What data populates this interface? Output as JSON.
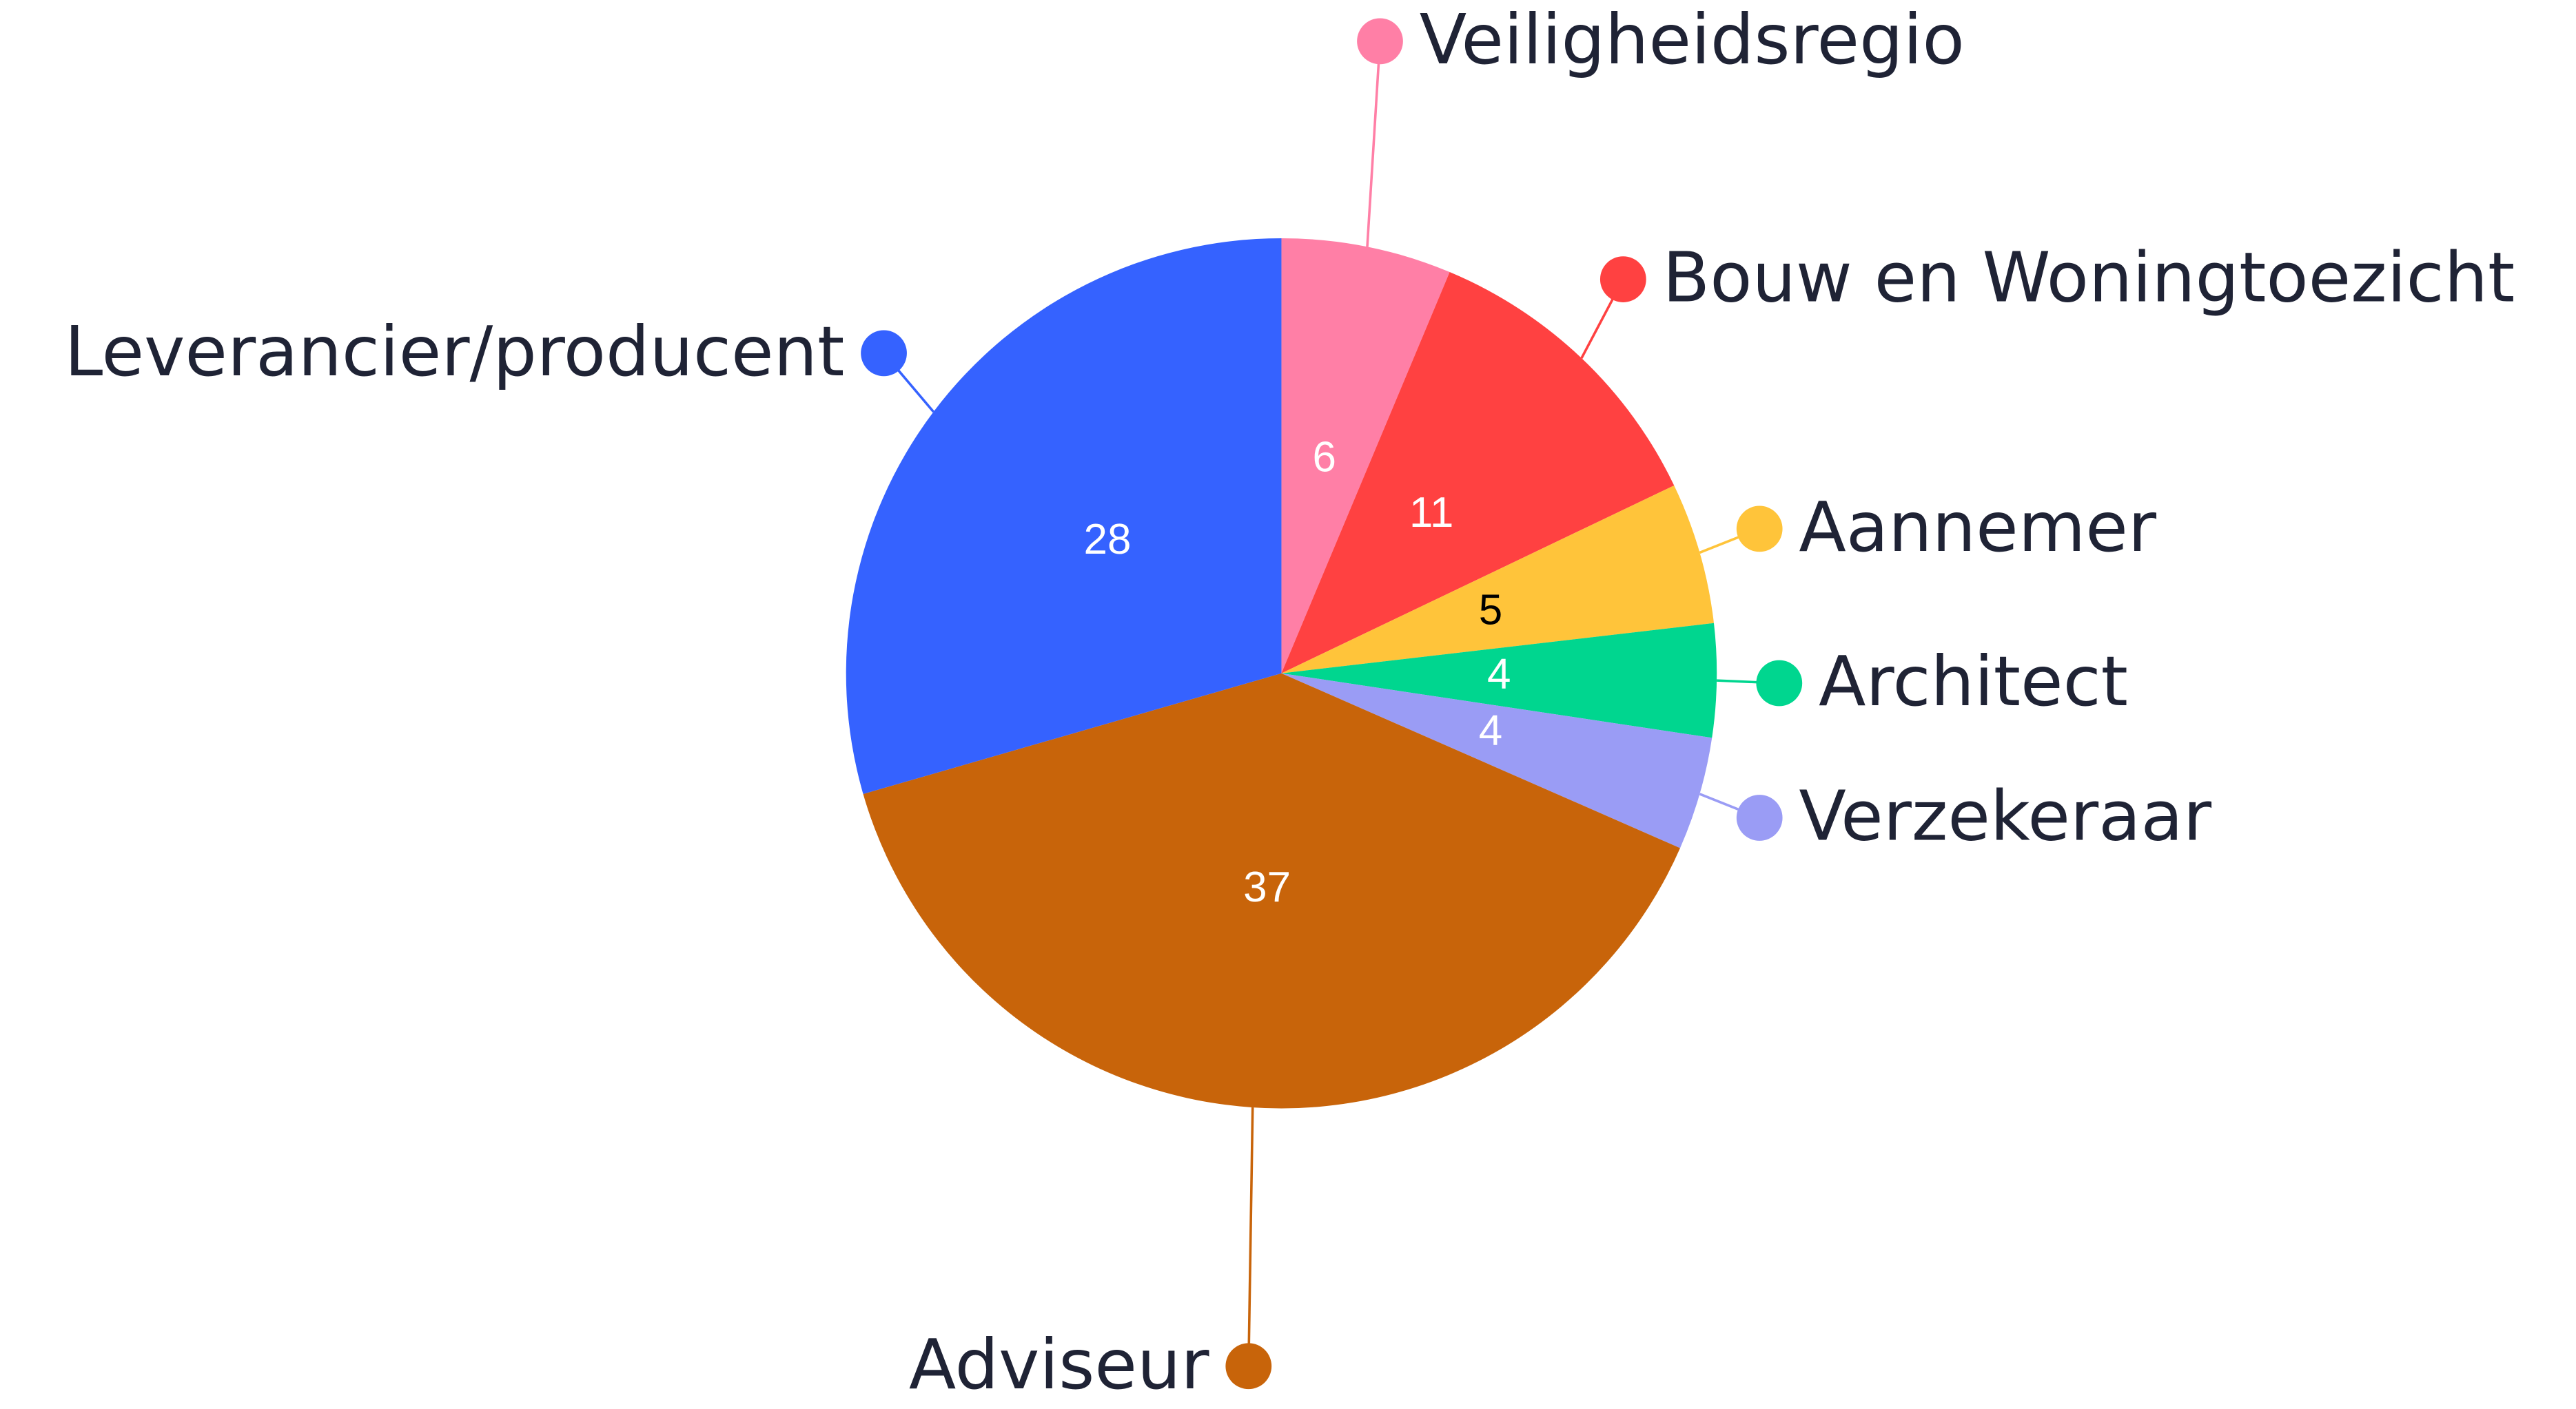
{
  "chart_data": {
    "type": "pie",
    "categories": [
      "Veiligheidsregio",
      "Bouw en Woningtoezicht",
      "Aannemer",
      "Architect",
      "Verzekeraar",
      "Adviseur",
      "Leverancier/producent"
    ],
    "values": [
      6,
      11,
      5,
      4,
      4,
      37,
      28
    ],
    "colors": [
      "#ff7fa6",
      "#ff4141",
      "#ffc43a",
      "#00d68f",
      "#9a9cf5",
      "#c8640a",
      "#3562ff"
    ]
  }
}
